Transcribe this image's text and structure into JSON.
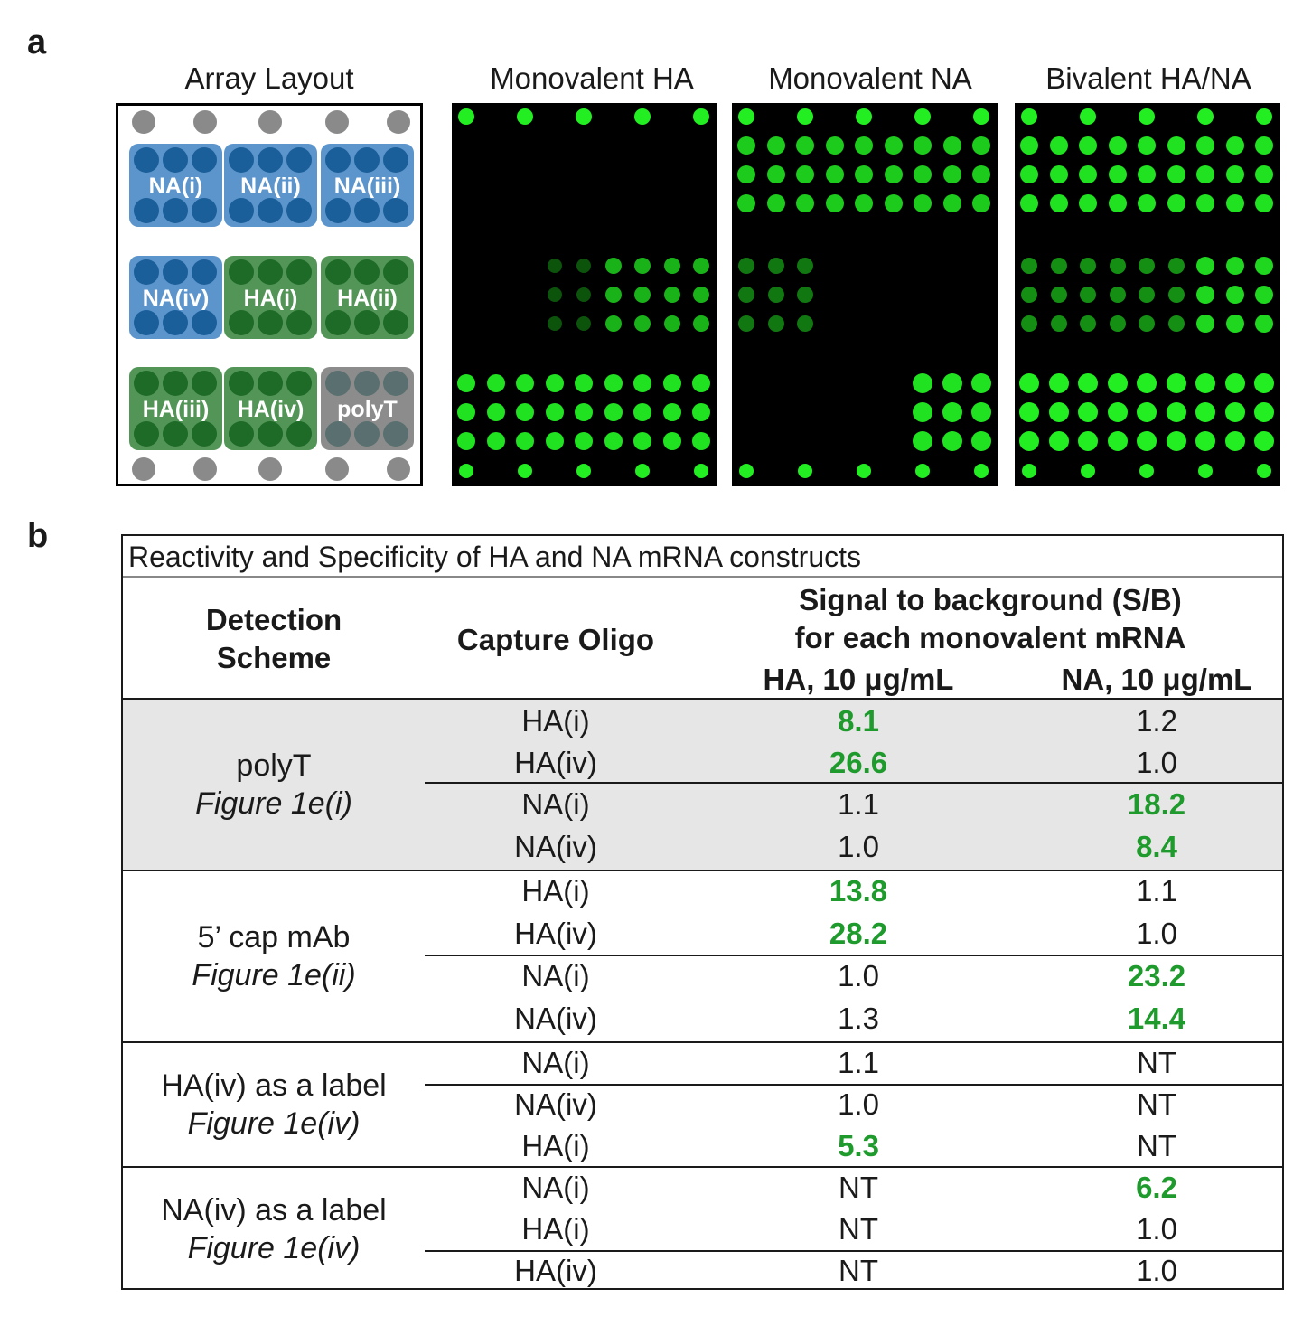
{
  "panel_a": {
    "letter": "a",
    "titles": {
      "layout": "Array Layout",
      "scan1": "Monovalent HA",
      "scan2": "Monovalent NA",
      "scan3": "Bivalent HA/NA"
    },
    "layout_groups": [
      "NA(i)",
      "NA(ii)",
      "NA(iii)",
      "NA(iv)",
      "HA(i)",
      "HA(ii)",
      "HA(iii)",
      "HA(iv)",
      "polyT"
    ],
    "colors": {
      "na_group": "#4a88c7",
      "ha_group": "#3f8a45",
      "polyt_group": "#808080",
      "signal": "#22ee22"
    }
  },
  "panel_b": {
    "letter": "b",
    "caption": "Reactivity and Specificity of HA and NA mRNA constructs",
    "headers": {
      "scheme_line1": "Detection",
      "scheme_line2": "Scheme",
      "oligo": "Capture Oligo",
      "signal_line1": "Signal to background (S/B)",
      "signal_line2": "for each monovalent mRNA",
      "col_ha": "HA, 10 μg/mL",
      "col_na": "NA, 10 μg/mL"
    },
    "groups": [
      {
        "scheme": "polyT",
        "figure": "Figure 1e(i)",
        "rows": [
          {
            "oligo": "HA(i)",
            "ha": "8.1",
            "na": "1.2"
          },
          {
            "oligo": "HA(iv)",
            "ha": "26.6",
            "na": "1.0"
          },
          {
            "oligo": "NA(i)",
            "ha": "1.1",
            "na": "18.2"
          },
          {
            "oligo": "NA(iv)",
            "ha": "1.0",
            "na": "8.4"
          }
        ]
      },
      {
        "scheme": "5’ cap mAb",
        "figure": "Figure 1e(ii)",
        "rows": [
          {
            "oligo": "HA(i)",
            "ha": "13.8",
            "na": "1.1"
          },
          {
            "oligo": "HA(iv)",
            "ha": "28.2",
            "na": "1.0"
          },
          {
            "oligo": "NA(i)",
            "ha": "1.0",
            "na": "23.2"
          },
          {
            "oligo": "NA(iv)",
            "ha": "1.3",
            "na": "14.4"
          }
        ]
      },
      {
        "scheme": "HA(iv) as a label",
        "figure": "Figure 1e(iv)",
        "rows": [
          {
            "oligo": "NA(i)",
            "ha": "1.1",
            "na": "NT"
          },
          {
            "oligo": "NA(iv)",
            "ha": "1.0",
            "na": "NT"
          },
          {
            "oligo": "HA(i)",
            "ha": "5.3",
            "na": "NT"
          }
        ]
      },
      {
        "scheme": "NA(iv) as a label",
        "figure": "Figure 1e(iv)",
        "rows": [
          {
            "oligo": "NA(i)",
            "ha": "NT",
            "na": "6.2"
          },
          {
            "oligo": "HA(i)",
            "ha": "NT",
            "na": "1.0"
          },
          {
            "oligo": "HA(iv)",
            "ha": "NT",
            "na": "1.0"
          }
        ]
      }
    ]
  }
}
